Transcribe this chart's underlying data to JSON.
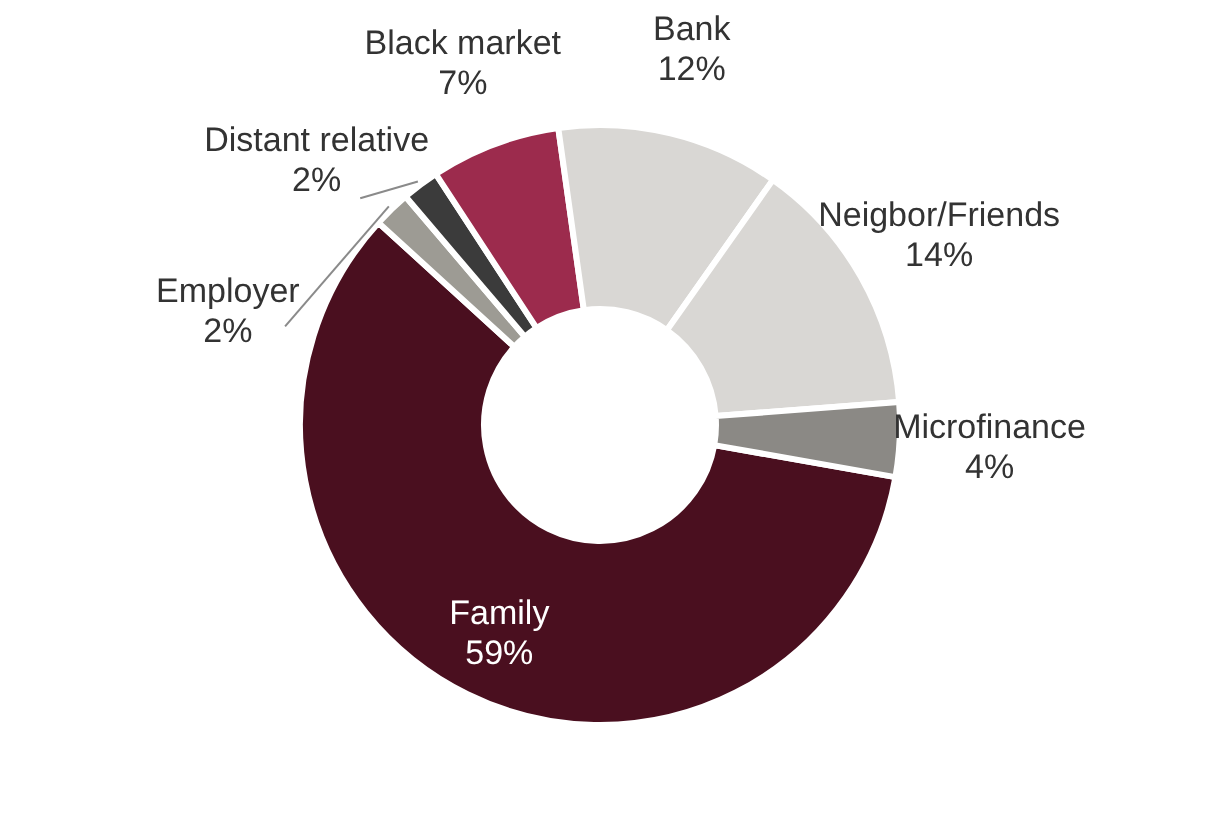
{
  "chart_data": {
    "type": "donut",
    "categories": [
      "Family",
      "Employer",
      "Distant relative",
      "Black market",
      "Bank",
      "Neigbor/Friends",
      "Microfinance"
    ],
    "values": [
      59,
      2,
      2,
      7,
      12,
      14,
      4
    ],
    "value_labels": [
      "59%",
      "2%",
      "2%",
      "7%",
      "12%",
      "14%",
      "4%"
    ],
    "colors": [
      "#4a0f1f",
      "#9d9b94",
      "#3b3b3b",
      "#9c2b4d",
      "#d9d7d4",
      "#d9d7d4",
      "#8b8985"
    ]
  }
}
